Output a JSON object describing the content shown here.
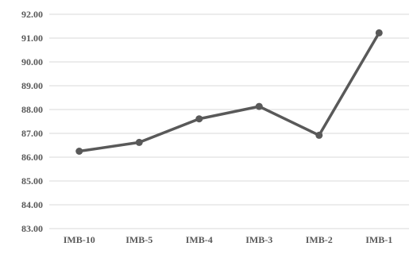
{
  "chart_data": {
    "type": "line",
    "title": "",
    "xlabel": "",
    "ylabel": "",
    "categories": [
      "IMB-10",
      "IMB-5",
      "IMB-4",
      "IMB-3",
      "IMB-2",
      "IMB-1"
    ],
    "series": [
      {
        "values": [
          86.25,
          86.62,
          87.61,
          88.13,
          86.92,
          91.22
        ]
      }
    ],
    "ylim": [
      83,
      92
    ],
    "yticks": [
      "83.00",
      "84.00",
      "85.00",
      "86.00",
      "87.00",
      "88.00",
      "89.00",
      "90.00",
      "91.00",
      "92.00"
    ],
    "grid": true,
    "legend": "none",
    "colors": {
      "series": "#595959",
      "grid": "#d9d9d9",
      "text": "#595959"
    }
  }
}
